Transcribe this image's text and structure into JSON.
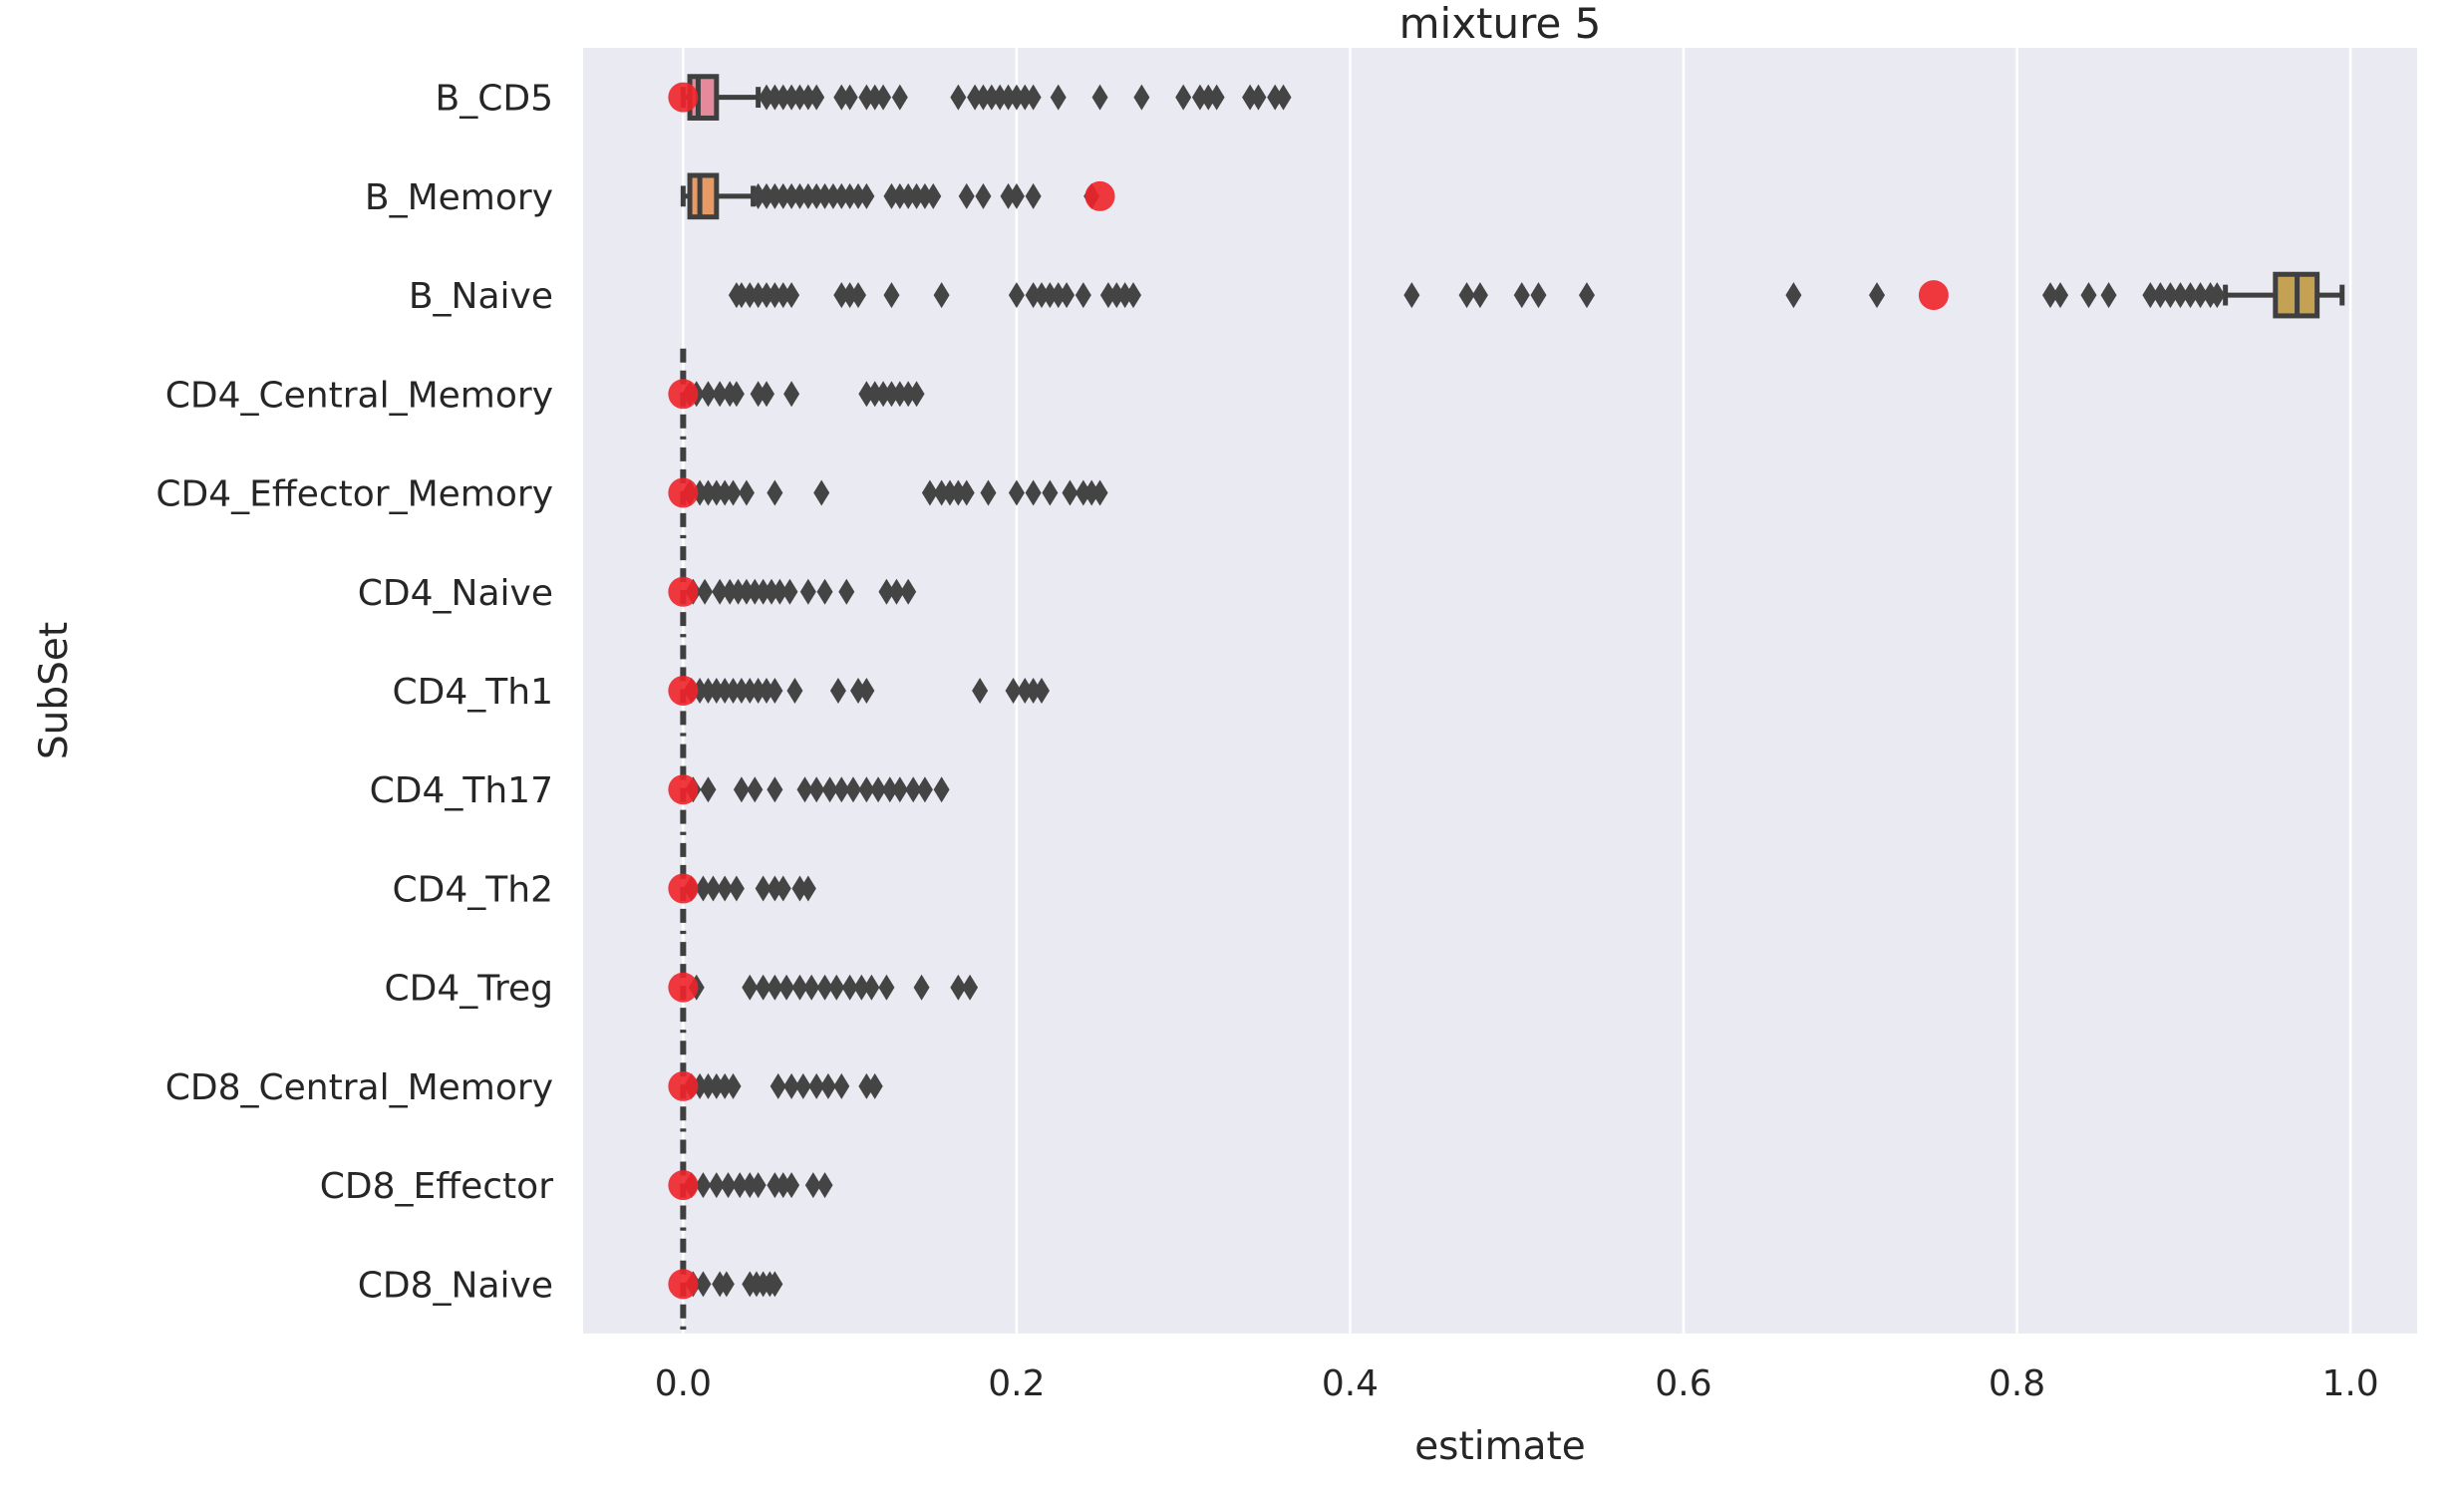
{
  "chart_data": {
    "type": "box",
    "title": "mixture 5",
    "xlabel": "estimate",
    "ylabel": "SubSet",
    "xlim": [
      -0.06,
      1.04
    ],
    "xticks": [
      0.0,
      0.2,
      0.4,
      0.6,
      0.8,
      1.0
    ],
    "xtick_labels": [
      "0.0",
      "0.2",
      "0.4",
      "0.6",
      "0.8",
      "1.0"
    ],
    "grid": true,
    "background": "#eaeaf2",
    "outlier_color": "#444444",
    "true_value_color": "#f0242a",
    "categories": [
      "B_CD5",
      "B_Memory",
      "B_Naive",
      "CD4_Central_Memory",
      "CD4_Effector_Memory",
      "CD4_Naive",
      "CD4_Th1",
      "CD4_Th17",
      "CD4_Th2",
      "CD4_Treg",
      "CD8_Central_Memory",
      "CD8_Effector",
      "CD8_Naive"
    ],
    "series": [
      {
        "category": "B_CD5",
        "color": "#e58a9b",
        "box": {
          "whislo": 0.0,
          "q1": 0.004,
          "med": 0.009,
          "q3": 0.02,
          "whishi": 0.045
        },
        "outliers": [
          0.05,
          0.055,
          0.06,
          0.065,
          0.07,
          0.075,
          0.08,
          0.095,
          0.1,
          0.11,
          0.115,
          0.12,
          0.13,
          0.165,
          0.175,
          0.18,
          0.185,
          0.19,
          0.195,
          0.2,
          0.205,
          0.21,
          0.225,
          0.25,
          0.275,
          0.3,
          0.31,
          0.315,
          0.32,
          0.34,
          0.345,
          0.355,
          0.36
        ],
        "true_value": 0.0
      },
      {
        "category": "B_Memory",
        "color": "#e89a65",
        "box": {
          "whislo": 0.0,
          "q1": 0.004,
          "med": 0.01,
          "q3": 0.02,
          "whishi": 0.042
        },
        "outliers": [
          0.045,
          0.05,
          0.055,
          0.06,
          0.065,
          0.07,
          0.075,
          0.08,
          0.085,
          0.09,
          0.095,
          0.1,
          0.105,
          0.11,
          0.125,
          0.13,
          0.135,
          0.14,
          0.145,
          0.15,
          0.17,
          0.18,
          0.195,
          0.2,
          0.21,
          0.245
        ],
        "true_value": 0.25
      },
      {
        "category": "B_Naive",
        "color": "#c5a154",
        "box": {
          "whislo": 0.925,
          "q1": 0.955,
          "med": 0.968,
          "q3": 0.98,
          "whishi": 0.995
        },
        "outliers": [
          0.032,
          0.035,
          0.04,
          0.045,
          0.05,
          0.055,
          0.06,
          0.065,
          0.095,
          0.1,
          0.105,
          0.125,
          0.155,
          0.2,
          0.21,
          0.215,
          0.22,
          0.225,
          0.23,
          0.24,
          0.255,
          0.26,
          0.265,
          0.27,
          0.437,
          0.47,
          0.478,
          0.503,
          0.513,
          0.542,
          0.666,
          0.716,
          0.82,
          0.826,
          0.843,
          0.855,
          0.88,
          0.886,
          0.892,
          0.898,
          0.904,
          0.91,
          0.916,
          0.92
        ],
        "true_value": 0.75
      },
      {
        "category": "CD4_Central_Memory",
        "color": "#b0ad52",
        "box": {
          "whislo": 0.0,
          "q1": 0.0,
          "med": 0.0,
          "q3": 0.0,
          "whishi": 0.0
        },
        "outliers": [
          0.004,
          0.008,
          0.015,
          0.022,
          0.028,
          0.032,
          0.045,
          0.05,
          0.065,
          0.11,
          0.115,
          0.12,
          0.125,
          0.13,
          0.135,
          0.14
        ],
        "true_value": 0.0
      },
      {
        "category": "CD4_Effector_Memory",
        "color": "#8fb553",
        "box": {
          "whislo": 0.0,
          "q1": 0.0,
          "med": 0.0,
          "q3": 0.0,
          "whishi": 0.0
        },
        "outliers": [
          0.004,
          0.01,
          0.015,
          0.02,
          0.025,
          0.03,
          0.038,
          0.055,
          0.083,
          0.148,
          0.155,
          0.16,
          0.165,
          0.17,
          0.183,
          0.2,
          0.21,
          0.22,
          0.232,
          0.24,
          0.245,
          0.25
        ],
        "true_value": 0.0
      },
      {
        "category": "CD4_Naive",
        "color": "#58b88e",
        "box": {
          "whislo": 0.0,
          "q1": 0.0,
          "med": 0.0,
          "q3": 0.0,
          "whishi": 0.0
        },
        "outliers": [
          0.006,
          0.013,
          0.022,
          0.028,
          0.033,
          0.038,
          0.043,
          0.048,
          0.053,
          0.058,
          0.064,
          0.075,
          0.085,
          0.098,
          0.122,
          0.128,
          0.135
        ],
        "true_value": 0.0
      },
      {
        "category": "CD4_Th1",
        "color": "#56b4a8",
        "box": {
          "whislo": 0.0,
          "q1": 0.0,
          "med": 0.0,
          "q3": 0.0,
          "whishi": 0.0
        },
        "outliers": [
          0.005,
          0.01,
          0.015,
          0.02,
          0.025,
          0.03,
          0.035,
          0.04,
          0.045,
          0.05,
          0.055,
          0.067,
          0.093,
          0.105,
          0.11,
          0.178,
          0.198,
          0.205,
          0.21,
          0.215
        ],
        "true_value": 0.0
      },
      {
        "category": "CD4_Th17",
        "color": "#58b1c4",
        "box": {
          "whislo": 0.0,
          "q1": 0.0,
          "med": 0.0,
          "q3": 0.0,
          "whishi": 0.0
        },
        "outliers": [
          0.006,
          0.015,
          0.035,
          0.043,
          0.055,
          0.073,
          0.08,
          0.088,
          0.095,
          0.102,
          0.11,
          0.117,
          0.124,
          0.13,
          0.138,
          0.145,
          0.155
        ],
        "true_value": 0.0
      },
      {
        "category": "CD4_Th2",
        "color": "#60a8d6",
        "box": {
          "whislo": 0.0,
          "q1": 0.0,
          "med": 0.0,
          "q3": 0.0,
          "whishi": 0.0
        },
        "outliers": [
          0.005,
          0.012,
          0.018,
          0.025,
          0.032,
          0.048,
          0.055,
          0.06,
          0.07,
          0.075
        ],
        "true_value": 0.0
      },
      {
        "category": "CD4_Treg",
        "color": "#9aa6e0",
        "box": {
          "whislo": 0.0,
          "q1": 0.0,
          "med": 0.0,
          "q3": 0.0,
          "whishi": 0.0
        },
        "outliers": [
          0.008,
          0.04,
          0.048,
          0.055,
          0.062,
          0.07,
          0.077,
          0.085,
          0.092,
          0.1,
          0.107,
          0.113,
          0.122,
          0.143,
          0.165,
          0.172
        ],
        "true_value": 0.0
      },
      {
        "category": "CD8_Central_Memory",
        "color": "#c199df",
        "box": {
          "whislo": 0.0,
          "q1": 0.0,
          "med": 0.0,
          "q3": 0.0,
          "whishi": 0.0
        },
        "outliers": [
          0.005,
          0.01,
          0.015,
          0.02,
          0.025,
          0.03,
          0.057,
          0.065,
          0.072,
          0.08,
          0.087,
          0.095,
          0.11,
          0.115
        ],
        "true_value": 0.0
      },
      {
        "category": "CD8_Effector",
        "color": "#df8fcf",
        "box": {
          "whislo": 0.0,
          "q1": 0.0,
          "med": 0.0,
          "q3": 0.0,
          "whishi": 0.0
        },
        "outliers": [
          0.005,
          0.012,
          0.02,
          0.027,
          0.034,
          0.04,
          0.045,
          0.055,
          0.06,
          0.065,
          0.078,
          0.085
        ],
        "true_value": 0.0
      },
      {
        "category": "CD8_Naive",
        "color": "#e58fae",
        "box": {
          "whislo": 0.0,
          "q1": 0.0,
          "med": 0.0,
          "q3": 0.0,
          "whishi": 0.0
        },
        "outliers": [
          0.006,
          0.012,
          0.022,
          0.026,
          0.04,
          0.044,
          0.048,
          0.052,
          0.055
        ],
        "true_value": 0.0
      }
    ]
  }
}
